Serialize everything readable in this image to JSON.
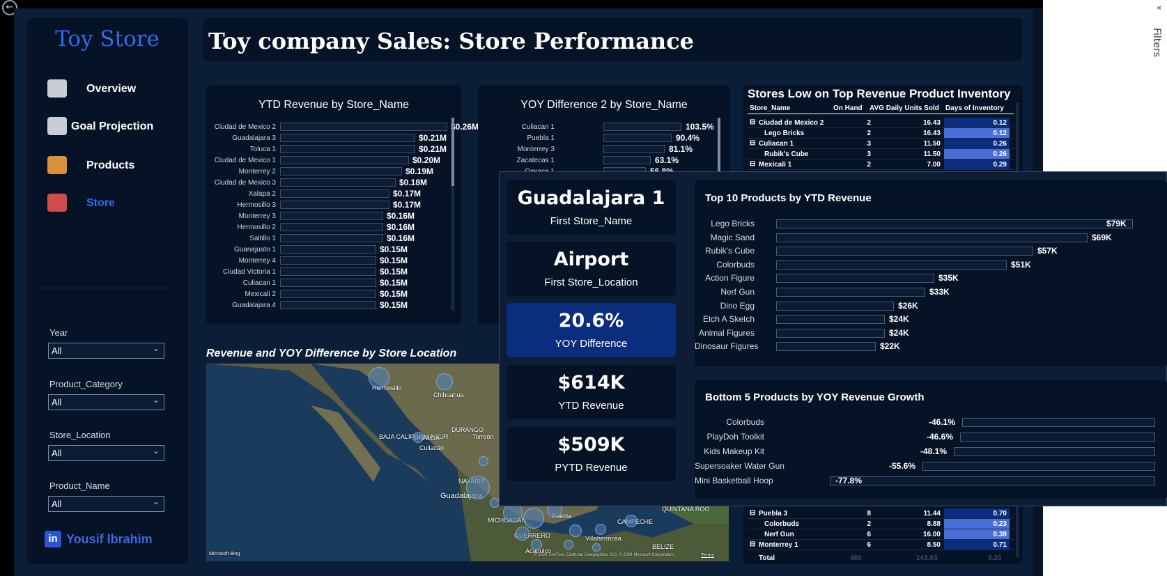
{
  "app": {
    "brand": "Toy Store",
    "page_title": "Toy company Sales: Store Performance",
    "filters_pane_label": "Filters",
    "author": "Yousif Ibrahim",
    "linkedin_glyph": "in"
  },
  "nav": [
    {
      "label": "Overview",
      "icon": "report-icon",
      "active": false
    },
    {
      "label": "Goal Projection",
      "icon": "goal-icon",
      "active": false
    },
    {
      "label": "Products",
      "icon": "box-icon",
      "active": false
    },
    {
      "label": "Store",
      "icon": "store-icon",
      "active": true
    }
  ],
  "filters": [
    {
      "label": "Year",
      "value": "All"
    },
    {
      "label": "Product_Category",
      "value": "All"
    },
    {
      "label": "Store_Location",
      "value": "All"
    },
    {
      "label": "Product_Name",
      "value": "All"
    }
  ],
  "ytd_chart": {
    "title": "YTD Revenue by Store_Name",
    "rows": [
      {
        "label": "Ciudad de Mexico 2",
        "value": 0.26,
        "text": "$0.26M"
      },
      {
        "label": "Guadalajara 3",
        "value": 0.21,
        "text": "$0.21M"
      },
      {
        "label": "Toluca 1",
        "value": 0.21,
        "text": "$0.21M"
      },
      {
        "label": "Ciudad de Mexico 1",
        "value": 0.2,
        "text": "$0.20M"
      },
      {
        "label": "Monterrey 2",
        "value": 0.19,
        "text": "$0.19M"
      },
      {
        "label": "Ciudad de Mexico 3",
        "value": 0.18,
        "text": "$0.18M"
      },
      {
        "label": "Xalapa 2",
        "value": 0.17,
        "text": "$0.17M"
      },
      {
        "label": "Hermosillo 3",
        "value": 0.17,
        "text": "$0.17M"
      },
      {
        "label": "Monterrey 3",
        "value": 0.16,
        "text": "$0.16M"
      },
      {
        "label": "Hermosillo 2",
        "value": 0.16,
        "text": "$0.16M"
      },
      {
        "label": "Saltillo 1",
        "value": 0.16,
        "text": "$0.16M"
      },
      {
        "label": "Guanajuato 1",
        "value": 0.15,
        "text": "$0.15M"
      },
      {
        "label": "Monterrey 4",
        "value": 0.15,
        "text": "$0.15M"
      },
      {
        "label": "Ciudad Victoria 1",
        "value": 0.15,
        "text": "$0.15M"
      },
      {
        "label": "Culiacan 1",
        "value": 0.15,
        "text": "$0.15M"
      },
      {
        "label": "Mexicali 2",
        "value": 0.15,
        "text": "$0.15M"
      },
      {
        "label": "Guadalajara 4",
        "value": 0.15,
        "text": "$0.15M"
      }
    ]
  },
  "yoy_chart": {
    "title": "YOY Difference 2 by Store_Name",
    "rows": [
      {
        "label": "Culiacan 1",
        "value": 103.5,
        "text": "103.5%"
      },
      {
        "label": "Puebla 1",
        "value": 90.4,
        "text": "90.4%"
      },
      {
        "label": "Monterrey 3",
        "value": 81.1,
        "text": "81.1%"
      },
      {
        "label": "Zacatecas 1",
        "value": 63.1,
        "text": "63.1%"
      },
      {
        "label": "Oaxaca 1",
        "value": 56.8,
        "text": "56.8%"
      }
    ]
  },
  "inventory_table": {
    "title": "Stores Low on Top Revenue Product Inventory",
    "columns": [
      "Store_Name",
      "On Hand",
      "AVG Daily Units Sold",
      "Days of Inventory"
    ],
    "top_rows": [
      {
        "name": "Ciudad de Mexico 2",
        "level": 0,
        "on_hand": "2",
        "avg": "16.43",
        "days": "0.12",
        "days_val": 0.12
      },
      {
        "name": "Lego Bricks",
        "level": 1,
        "on_hand": "2",
        "avg": "16.43",
        "days": "0.12",
        "days_val": 0.12
      },
      {
        "name": "Culiacan 1",
        "level": 0,
        "on_hand": "3",
        "avg": "11.50",
        "days": "0.26",
        "days_val": 0.26
      },
      {
        "name": "Rubik's Cube",
        "level": 1,
        "on_hand": "3",
        "avg": "11.50",
        "days": "0.26",
        "days_val": 0.26
      },
      {
        "name": "Mexicali 1",
        "level": 0,
        "on_hand": "2",
        "avg": "7.00",
        "days": "0.29",
        "days_val": 0.29
      }
    ],
    "bottom_rows": [
      {
        "name": "Puebla 3",
        "level": 0,
        "on_hand": "8",
        "avg": "11.44",
        "days": "0.70",
        "days_val": 0.7
      },
      {
        "name": "Colorbuds",
        "level": 1,
        "on_hand": "2",
        "avg": "8.88",
        "days": "0.23",
        "days_val": 0.23
      },
      {
        "name": "Nerf Gun",
        "level": 1,
        "on_hand": "6",
        "avg": "16.00",
        "days": "0.38",
        "days_val": 0.38
      },
      {
        "name": "Monterrey 1",
        "level": 0,
        "on_hand": "6",
        "avg": "8.50",
        "days": "0.71",
        "days_val": 0.71
      }
    ],
    "total": {
      "label": "Total",
      "on_hand": "460",
      "avg": "143.63",
      "days": "3.20"
    }
  },
  "map": {
    "title": "Revenue and YOY Difference by Store Location",
    "labels": [
      "Hermosillo",
      "Chihuahua",
      "BAJA CALIFORNIA SUR",
      "SINALOA",
      "Culiacán",
      "DURANGO",
      "Torreón",
      "NAYARIT",
      "Guadalajara",
      "Puebla",
      "MICHOACÁN",
      "GUERRERO",
      "Acapulco",
      "Villahermosa",
      "CAMPECHE",
      "QUINTANA ROO",
      "BELIZE"
    ],
    "attribution": "© 2024 TomTom, Earthstar Geographics SIO, © 2024 Microsoft Corporation",
    "terms": "Terms",
    "bing": "Microsoft Bing"
  },
  "tooltip": {
    "kpis": [
      {
        "value": "Guadalajara 1",
        "label": "First Store_Name",
        "highlight": false
      },
      {
        "value": "Airport",
        "label": "First Store_Location",
        "highlight": false
      },
      {
        "value": "20.6%",
        "label": "YOY Difference",
        "highlight": true
      },
      {
        "value": "$614K",
        "label": "YTD Revenue",
        "highlight": false
      },
      {
        "value": "$509K",
        "label": "PYTD Revenue",
        "highlight": false
      }
    ],
    "top10": {
      "title": "Top 10 Products by YTD Revenue",
      "rows": [
        {
          "label": "Lego Bricks",
          "value": 79,
          "text": "$79K"
        },
        {
          "label": "Magic Sand",
          "value": 69,
          "text": "$69K"
        },
        {
          "label": "Rubik's Cube",
          "value": 57,
          "text": "$57K"
        },
        {
          "label": "Colorbuds",
          "value": 51,
          "text": "$51K"
        },
        {
          "label": "Action Figure",
          "value": 35,
          "text": "$35K"
        },
        {
          "label": "Nerf Gun",
          "value": 33,
          "text": "$33K"
        },
        {
          "label": "Dino Egg",
          "value": 26,
          "text": "$26K"
        },
        {
          "label": "Etch A Sketch",
          "value": 24,
          "text": "$24K"
        },
        {
          "label": "Animal Figures",
          "value": 24,
          "text": "$24K"
        },
        {
          "label": "Dinosaur Figures",
          "value": 22,
          "text": "$22K"
        }
      ]
    },
    "bottom5": {
      "title": "Bottom 5 Products by YOY Revenue Growth",
      "rows": [
        {
          "label": "Colorbuds",
          "value": -46.1,
          "text": "-46.1%"
        },
        {
          "label": "PlayDoh Toolkit",
          "value": -46.6,
          "text": "-46.6%"
        },
        {
          "label": "Kids Makeup Kit",
          "value": -48.1,
          "text": "-48.1%"
        },
        {
          "label": "Supersoaker Water Gun",
          "value": -55.6,
          "text": "-55.6%"
        },
        {
          "label": "Mini Basketball Hoop",
          "value": -77.8,
          "text": "-77.8%"
        }
      ]
    }
  },
  "colors": {
    "accent": "#2f6cf0",
    "highlight": "#0a2e7d",
    "days_dark": "#0a2e7d",
    "days_light": "#5b7fe0"
  }
}
